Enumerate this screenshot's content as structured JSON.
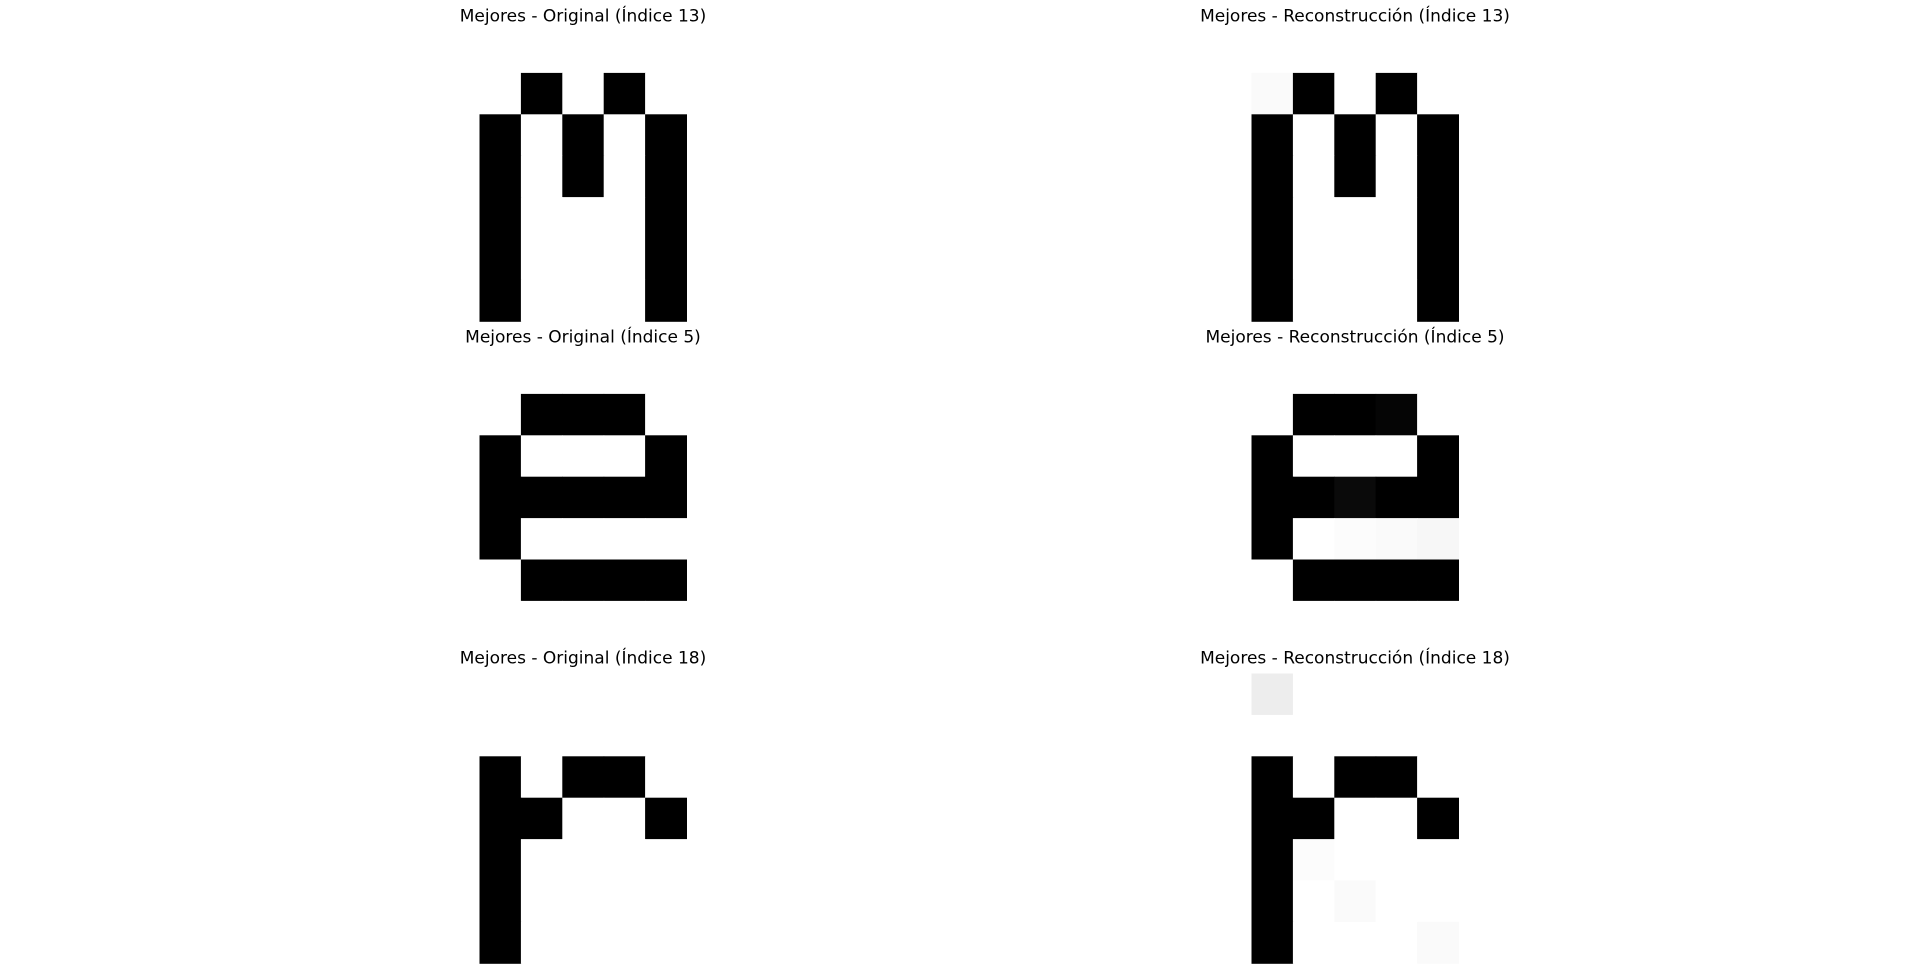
{
  "figure": {
    "background": "#ffffff",
    "colormap": "gray_r",
    "value_range": [
      0,
      1
    ]
  },
  "chart_data": [
    {
      "type": "heatmap",
      "title": "Mejores - Original (Índice 13)",
      "rows": 7,
      "cols": 5,
      "values": [
        [
          0,
          0,
          0,
          0,
          0
        ],
        [
          0,
          1,
          0,
          1,
          0
        ],
        [
          1,
          0,
          1,
          0,
          1
        ],
        [
          1,
          0,
          1,
          0,
          1
        ],
        [
          1,
          0,
          0,
          0,
          1
        ],
        [
          1,
          0,
          0,
          0,
          1
        ],
        [
          1,
          0,
          0,
          0,
          1
        ]
      ]
    },
    {
      "type": "heatmap",
      "title": "Mejores - Reconstrucción (Índice 13)",
      "rows": 7,
      "cols": 5,
      "values": [
        [
          0,
          0,
          0,
          0,
          0
        ],
        [
          0.02,
          1,
          0,
          1,
          0
        ],
        [
          1,
          0,
          1,
          0,
          1
        ],
        [
          1,
          0,
          1,
          0,
          1
        ],
        [
          1,
          0,
          0,
          0,
          1
        ],
        [
          1,
          0,
          0,
          0,
          1
        ],
        [
          1,
          0,
          0,
          0,
          1
        ]
      ]
    },
    {
      "type": "heatmap",
      "title": "Mejores - Original (Índice 5)",
      "rows": 7,
      "cols": 5,
      "values": [
        [
          0,
          0,
          0,
          0,
          0
        ],
        [
          0,
          1,
          1,
          1,
          0
        ],
        [
          1,
          0,
          0,
          0,
          1
        ],
        [
          1,
          1,
          1,
          1,
          1
        ],
        [
          1,
          0,
          0,
          0,
          0
        ],
        [
          0,
          1,
          1,
          1,
          1
        ],
        [
          0,
          0,
          0,
          0,
          0
        ]
      ]
    },
    {
      "type": "heatmap",
      "title": "Mejores - Reconstrucción (Índice 5)",
      "rows": 7,
      "cols": 5,
      "values": [
        [
          0,
          0,
          0,
          0,
          0
        ],
        [
          0,
          1,
          1,
          0.98,
          0
        ],
        [
          1,
          0,
          0,
          0,
          1
        ],
        [
          1,
          1,
          0.96,
          1,
          1
        ],
        [
          1,
          0,
          0.01,
          0.02,
          0.03
        ],
        [
          0,
          1,
          1,
          1,
          1
        ],
        [
          0,
          0,
          0,
          0,
          0
        ]
      ]
    },
    {
      "type": "heatmap",
      "title": "Mejores - Original (Índice 18)",
      "rows": 7,
      "cols": 5,
      "values": [
        [
          0,
          0,
          0,
          0,
          0
        ],
        [
          0,
          0,
          0,
          0,
          0
        ],
        [
          1,
          0,
          1,
          1,
          0
        ],
        [
          1,
          1,
          0,
          0,
          1
        ],
        [
          1,
          0,
          0,
          0,
          0
        ],
        [
          1,
          0,
          0,
          0,
          0
        ],
        [
          1,
          0,
          0,
          0,
          0
        ]
      ]
    },
    {
      "type": "heatmap",
      "title": "Mejores - Reconstrucción (Índice 18)",
      "rows": 7,
      "cols": 5,
      "values": [
        [
          0.07,
          0,
          0,
          0,
          0
        ],
        [
          0,
          0,
          0,
          0,
          0
        ],
        [
          1,
          0,
          1,
          1,
          0
        ],
        [
          1,
          1,
          0,
          0,
          1
        ],
        [
          1,
          0.01,
          0,
          0,
          0
        ],
        [
          1,
          0,
          0.02,
          0,
          0
        ],
        [
          1,
          0,
          0,
          0,
          0.02
        ]
      ]
    }
  ]
}
